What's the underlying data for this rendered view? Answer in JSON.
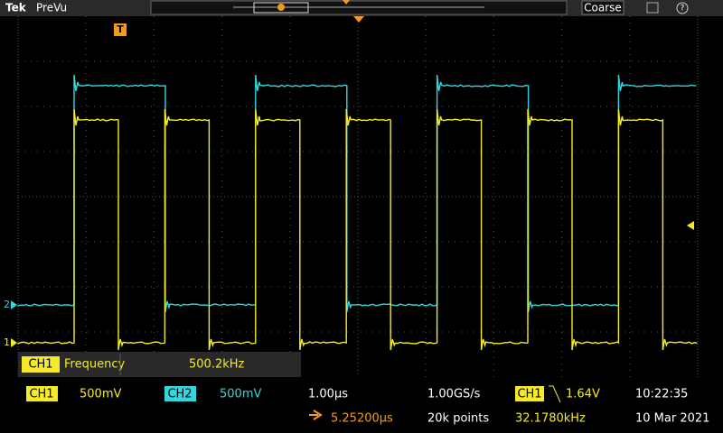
{
  "header": {
    "brand": "Tek",
    "mode": "PreVu",
    "button": "Coarse"
  },
  "trigger_marker": "T",
  "channel_markers": [
    "2",
    "1"
  ],
  "measurement": {
    "channel": "CH1",
    "name": "Frequency",
    "value": "500.2kHz"
  },
  "status": {
    "ch1": "CH1",
    "ch1_scale": "500mV",
    "ch2": "CH2",
    "ch2_scale": "500mV",
    "timebase": "1.00µs",
    "delay": "5.25200µs",
    "sample_rate": "1.00GS/s",
    "record_length": "20k points",
    "trigger_source": "CH1",
    "trigger_level": "1.64V",
    "trigger_freq": "32.1780kHz",
    "time": "10:22:35",
    "date": "10 Mar 2021"
  }
}
